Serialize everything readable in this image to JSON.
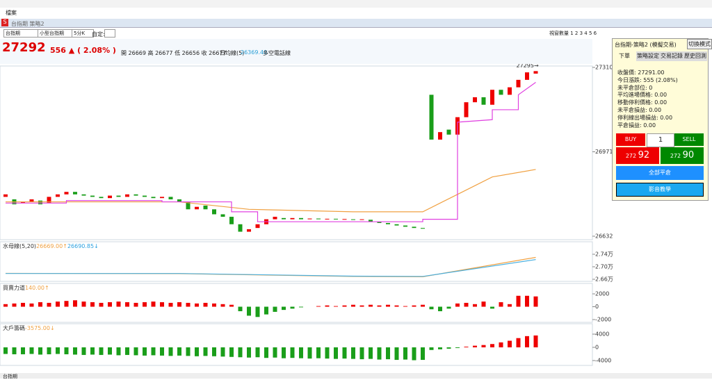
{
  "ui": {
    "menu": "檔案",
    "window_title": "台指期 策略2",
    "toolbar": {
      "select1": "台指期",
      "select2": "小型台指期",
      "select3": "5分K",
      "custom": "自定:",
      "window_count": "視窗數量 1 2 3 4 5 6"
    },
    "header": {
      "price": "27292",
      "change": "556 ▲ ( 2.08% )",
      "ohlc": "開 26669 高 26677 低 26656 收 26677",
      "ma": "日均線(5)",
      "ma_value": "26369.40",
      "ma_text": "多空電話線"
    },
    "panel": {
      "title": "台指期-策略2 (模擬交易)",
      "switch": "切換模式",
      "tabs": [
        "下單",
        "策略設定",
        "交易記錄",
        "歷史回測"
      ],
      "info": [
        "收盤價: 27291.00",
        "今日漲跌: 555 (2.08%)",
        "未平倉部位: 0",
        "平均進場價格: 0.00",
        "移動停利價格: 0.00",
        "未平倉損益: 0.00",
        "停利線出場損益: 0.00",
        "平倉損益: 0.00"
      ],
      "buy": "BUY",
      "qty": "1",
      "sell": "SELL",
      "bid_prefix": "272",
      "bid": "92",
      "ask_prefix": "272",
      "ask": "90",
      "close_all": "全部平倉",
      "video": "影音教學"
    },
    "footer": "台指期"
  },
  "chart_data": [
    {
      "type": "candlestick",
      "annotation": "27295→",
      "ylim": [
        26632,
        27310
      ],
      "yticks": [
        27310,
        26971,
        26632
      ],
      "open": [
        26790,
        26780,
        26765,
        26770,
        26775,
        26765,
        26790,
        26800,
        26810,
        26800,
        26795,
        26790,
        26785,
        26795,
        26790,
        26800,
        26795,
        26790,
        26785,
        26790,
        26780,
        26770,
        26740,
        26755,
        26740,
        26720,
        26710,
        26680,
        26650,
        26665,
        26680,
        26700,
        26705,
        26700,
        26705,
        26700,
        26703,
        26700,
        26702,
        26700,
        26700,
        26698,
        26698,
        26690,
        26685,
        26680,
        26675,
        26670,
        26665,
        27200,
        27020,
        27060,
        27040,
        27110,
        27170,
        27190,
        27160,
        27220,
        27200,
        27230,
        27260,
        27285
      ],
      "close": [
        26800,
        26760,
        26770,
        26780,
        26760,
        26790,
        26800,
        26810,
        26800,
        26795,
        26790,
        26785,
        26795,
        26790,
        26800,
        26795,
        26790,
        26785,
        26790,
        26780,
        26770,
        26740,
        26750,
        26740,
        26720,
        26710,
        26680,
        26650,
        26660,
        26680,
        26700,
        26710,
        26700,
        26705,
        26700,
        26703,
        26700,
        26702,
        26700,
        26701,
        26698,
        26700,
        26690,
        26685,
        26680,
        26675,
        26670,
        26665,
        26662,
        27020,
        27050,
        27040,
        27110,
        27170,
        27190,
        27160,
        27220,
        27200,
        27230,
        27260,
        27290,
        27295
      ],
      "lines": [
        {
          "color": "#f0a040",
          "x": [
            0,
            20,
            28,
            40,
            48,
            52,
            56,
            61
          ],
          "values": [
            26770,
            26770,
            26740,
            26730,
            26730,
            26800,
            26870,
            26900
          ]
        },
        {
          "color": "#e040e0",
          "x": [
            0,
            7,
            7,
            18,
            18,
            26,
            26,
            29,
            29,
            48,
            48,
            52,
            52,
            56,
            56,
            59,
            59,
            61
          ],
          "values": [
            26765,
            26765,
            26775,
            26775,
            26770,
            26770,
            26730,
            26730,
            26690,
            26690,
            26700,
            26700,
            27090,
            27100,
            27140,
            27140,
            27200,
            27250
          ]
        }
      ]
    },
    {
      "type": "line",
      "title": "水母線(5,20)",
      "label1": "26669.00↑",
      "label2": "26690.85↓",
      "ylim": [
        26600,
        27450
      ],
      "yticks": [
        {
          "value": 27400,
          "label": "2.74万"
        },
        {
          "value": 27000,
          "label": "2.70万"
        },
        {
          "value": 26600,
          "label": "2.66万"
        }
      ],
      "series": [
        {
          "color": "#f0a040",
          "x": [
            0,
            20,
            40,
            48,
            61
          ],
          "values": [
            26790,
            26780,
            26690,
            26680,
            27300
          ]
        },
        {
          "color": "#4ab0e0",
          "x": [
            0,
            20,
            40,
            48,
            61
          ],
          "values": [
            26785,
            26785,
            26700,
            26690,
            27230
          ]
        }
      ]
    },
    {
      "type": "bar",
      "title": "買賣力道",
      "label1": "140.00↑",
      "ylim": [
        -2500,
        2500
      ],
      "yticks": [
        2000,
        0,
        -2000
      ],
      "values": [
        400,
        500,
        600,
        500,
        700,
        600,
        800,
        900,
        1000,
        800,
        700,
        600,
        700,
        800,
        700,
        600,
        700,
        800,
        700,
        600,
        700,
        600,
        500,
        600,
        500,
        400,
        300,
        -700,
        -1400,
        -1600,
        -1200,
        -800,
        -500,
        -300,
        -100,
        0,
        100,
        200,
        100,
        200,
        300,
        200,
        300,
        200,
        300,
        200,
        100,
        200,
        300,
        -400,
        -700,
        -300,
        500,
        600,
        400,
        800,
        -300,
        700,
        400,
        1700,
        1700,
        1600
      ]
    },
    {
      "type": "bar",
      "title": "大戶籌碼",
      "label1": "-3575.00↓",
      "ylim": [
        -4500,
        4500
      ],
      "yticks": [
        4000,
        0,
        -4000
      ],
      "values": [
        -2000,
        -2100,
        -2100,
        -2000,
        -2200,
        -2100,
        -2000,
        -2100,
        -2200,
        -2300,
        -2200,
        -2300,
        -2200,
        -2400,
        -2300,
        -2400,
        -2500,
        -2400,
        -2500,
        -2600,
        -2500,
        -2600,
        -2700,
        -2600,
        -2700,
        -2800,
        -2900,
        -3000,
        -3100,
        -3000,
        -3200,
        -3100,
        -3300,
        -3200,
        -3300,
        -3400,
        -3300,
        -3400,
        -3500,
        -3400,
        -3500,
        -3600,
        -3500,
        -3700,
        -3600,
        -3800,
        -3700,
        -3900,
        -3800,
        -800,
        -600,
        -400,
        -200,
        200,
        500,
        700,
        1000,
        1500,
        2000,
        2800,
        3400,
        3600
      ]
    }
  ]
}
